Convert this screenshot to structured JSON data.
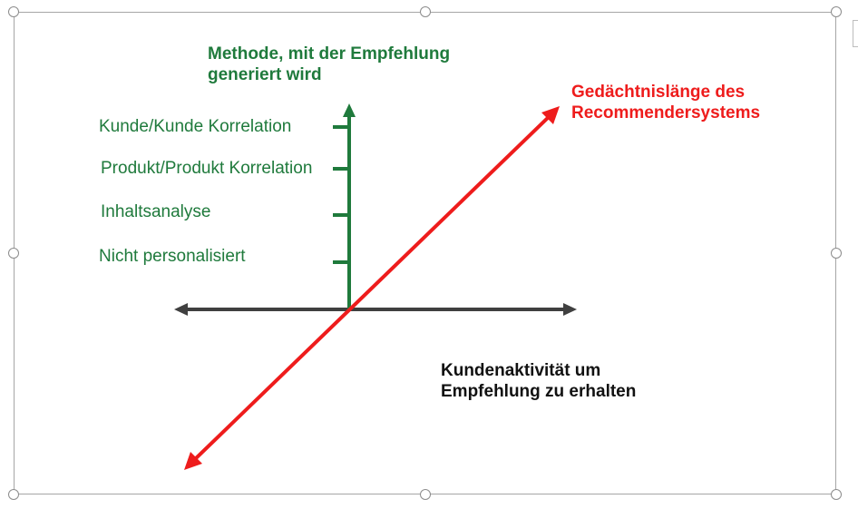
{
  "diagram": {
    "y_axis_title_line1": "Methode, mit der Empfehlung",
    "y_axis_title_line2": "generiert wird",
    "y_levels": [
      "Kunde/Kunde Korrelation",
      "Produkt/Produkt Korrelation",
      "Inhaltsanalyse",
      "Nicht personalisiert"
    ],
    "z_axis_title_line1": "Gedächtnislänge des",
    "z_axis_title_line2": "Recommendersystems",
    "x_axis_title_line1": "Kundenaktivität um",
    "x_axis_title_line2": "Empfehlung zu erhalten",
    "colors": {
      "y_axis": "#1f7a3c",
      "z_axis": "#ee1c1c",
      "x_axis": "#404040"
    }
  }
}
